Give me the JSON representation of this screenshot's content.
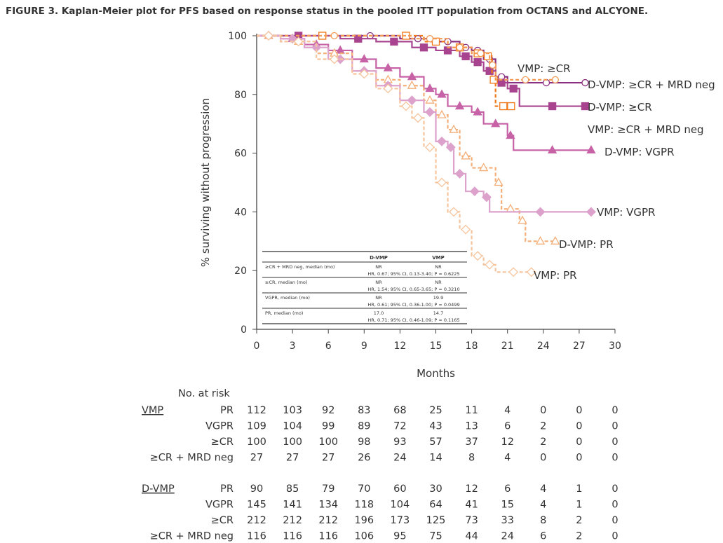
{
  "chart_data": {
    "type": "line",
    "title": "FIGURE 3. Kaplan-Meier plot for PFS based on response status in the pooled ITT population from OCTANS and ALCYONE.",
    "xlabel": "Months",
    "ylabel": "% surviving without progression",
    "xlim": [
      0,
      30
    ],
    "ylim": [
      0,
      100
    ],
    "xticks": [
      "0",
      "3",
      "6",
      "9",
      "12",
      "15",
      "18",
      "21",
      "24",
      "27",
      "30"
    ],
    "yticks": [
      "0",
      "20",
      "40",
      "60",
      "80",
      "100"
    ],
    "grid": false,
    "series": [
      {
        "name": "D-VMP: ≥CR + MRD neg",
        "color": "#8a2f80",
        "dash": false,
        "marker": "circle-open",
        "points": [
          [
            0,
            100
          ],
          [
            7,
            100
          ],
          [
            12,
            99
          ],
          [
            15,
            98
          ],
          [
            17,
            96
          ],
          [
            18,
            95
          ],
          [
            19,
            92
          ],
          [
            20,
            86
          ],
          [
            21,
            84
          ],
          [
            27.5,
            84
          ]
        ]
      },
      {
        "name": "D-VMP: ≥CR",
        "color": "#a8448f",
        "dash": false,
        "marker": "square",
        "points": [
          [
            0,
            100
          ],
          [
            7,
            99
          ],
          [
            10,
            98
          ],
          [
            13,
            96
          ],
          [
            15,
            95
          ],
          [
            17,
            93
          ],
          [
            18,
            91
          ],
          [
            19,
            88
          ],
          [
            20,
            84
          ],
          [
            21,
            82
          ],
          [
            22,
            76
          ],
          [
            27.5,
            76
          ]
        ]
      },
      {
        "name": "VMP: ≥CR",
        "color": "#f07818",
        "dash": true,
        "marker": "square-open",
        "points": [
          [
            0,
            100
          ],
          [
            11,
            100
          ],
          [
            14,
            98
          ],
          [
            16,
            96
          ],
          [
            18,
            94
          ],
          [
            19,
            93
          ],
          [
            19.7,
            85
          ],
          [
            20,
            76
          ],
          [
            21.3,
            76
          ]
        ]
      },
      {
        "name": "VMP: ≥CR + MRD neg",
        "color": "#f39a55",
        "dash": true,
        "marker": "circle-open",
        "points": [
          [
            0,
            100
          ],
          [
            13,
            99
          ],
          [
            16,
            96
          ],
          [
            18,
            94
          ],
          [
            19.5,
            90
          ],
          [
            20,
            85
          ],
          [
            25,
            85
          ]
        ]
      },
      {
        "name": "D-VMP: VGPR",
        "color": "#c862a6",
        "dash": false,
        "marker": "triangle",
        "points": [
          [
            0,
            100
          ],
          [
            2,
            99
          ],
          [
            4,
            97
          ],
          [
            6,
            95
          ],
          [
            8,
            92
          ],
          [
            10,
            89
          ],
          [
            12,
            86
          ],
          [
            14,
            82
          ],
          [
            15,
            80
          ],
          [
            16,
            76
          ],
          [
            18,
            74
          ],
          [
            19,
            70
          ],
          [
            21,
            66
          ],
          [
            21.5,
            61
          ],
          [
            28,
            61
          ]
        ]
      },
      {
        "name": "VMP: VGPR",
        "color": "#f4ae78",
        "dash": true,
        "marker": "triangle-open",
        "points": [
          [
            0,
            100
          ],
          [
            2,
            98
          ],
          [
            5,
            94
          ],
          [
            8,
            88
          ],
          [
            10,
            85
          ],
          [
            12,
            83
          ],
          [
            14,
            78
          ],
          [
            15,
            73
          ],
          [
            16,
            68
          ],
          [
            17,
            59
          ],
          [
            18,
            55
          ],
          [
            20,
            50
          ],
          [
            20.5,
            41
          ],
          [
            22,
            37
          ],
          [
            22.5,
            30
          ],
          [
            25,
            30
          ]
        ]
      },
      {
        "name": "D-VMP: PR",
        "color": "#dca2cc",
        "dash": false,
        "marker": "diamond",
        "points": [
          [
            0,
            100
          ],
          [
            2,
            99
          ],
          [
            4,
            96
          ],
          [
            6,
            92
          ],
          [
            8,
            88
          ],
          [
            10,
            83
          ],
          [
            12,
            78
          ],
          [
            14,
            74
          ],
          [
            15,
            64
          ],
          [
            16,
            62
          ],
          [
            16.5,
            53
          ],
          [
            17.5,
            47
          ],
          [
            19,
            45
          ],
          [
            19.5,
            40
          ],
          [
            28,
            40
          ]
        ]
      },
      {
        "name": "VMP: PR",
        "color": "#f6c49c",
        "dash": true,
        "marker": "diamond-open",
        "points": [
          [
            0,
            100
          ],
          [
            2,
            98
          ],
          [
            5,
            92
          ],
          [
            8,
            87
          ],
          [
            10,
            82
          ],
          [
            12,
            76
          ],
          [
            13,
            72
          ],
          [
            14,
            62
          ],
          [
            15,
            50
          ],
          [
            16,
            40
          ],
          [
            17,
            34
          ],
          [
            18,
            25
          ],
          [
            19,
            22
          ],
          [
            20,
            19.5
          ],
          [
            23,
            19.5
          ]
        ]
      }
    ],
    "inset_table": {
      "headers": [
        "",
        "D-VMP",
        "VMP"
      ],
      "rows": [
        {
          "label": "≥CR + MRD neg, median (mo)",
          "dvmp": "NR",
          "vmp": "NR",
          "stats": "HR, 0.67; 95% CI, 0.13-3.40; P = 0.6225"
        },
        {
          "label": "≥CR, median (mo)",
          "dvmp": "NR",
          "vmp": "NR",
          "stats": "HR, 1.54; 95% CI, 0.65-3.65; P = 0.3210"
        },
        {
          "label": "VGPR, median (mo)",
          "dvmp": "NR",
          "vmp": "19.9",
          "stats": "HR, 0.61; 95% CI, 0.36-1.00; P = 0.0499"
        },
        {
          "label": "PR, median (mo)",
          "dvmp": "17.0",
          "vmp": "14.7",
          "stats": "HR, 0.71; 95% CI, 0.46-1.09; P = 0.1165"
        }
      ]
    },
    "risk_table": {
      "title": "No. at risk",
      "groups": [
        {
          "name": "VMP",
          "rows": [
            {
              "label": "PR",
              "values": [
                "112",
                "103",
                "92",
                "83",
                "68",
                "25",
                "11",
                "4",
                "0",
                "0",
                "0"
              ]
            },
            {
              "label": "VGPR",
              "values": [
                "109",
                "104",
                "99",
                "89",
                "72",
                "43",
                "13",
                "6",
                "2",
                "0",
                "0"
              ]
            },
            {
              "label": "≥CR",
              "values": [
                "100",
                "100",
                "100",
                "98",
                "93",
                "57",
                "37",
                "12",
                "2",
                "0",
                "0"
              ]
            },
            {
              "label": "≥CR + MRD neg",
              "values": [
                "27",
                "27",
                "27",
                "26",
                "24",
                "14",
                "8",
                "4",
                "0",
                "0",
                "0"
              ]
            }
          ]
        },
        {
          "name": "D-VMP",
          "rows": [
            {
              "label": "PR",
              "values": [
                "90",
                "85",
                "79",
                "70",
                "60",
                "30",
                "12",
                "6",
                "4",
                "1",
                "0"
              ]
            },
            {
              "label": "VGPR",
              "values": [
                "145",
                "141",
                "134",
                "118",
                "104",
                "64",
                "41",
                "15",
                "4",
                "1",
                "0"
              ]
            },
            {
              "label": "≥CR",
              "values": [
                "212",
                "212",
                "212",
                "196",
                "173",
                "125",
                "73",
                "33",
                "8",
                "2",
                "0"
              ]
            },
            {
              "label": "≥CR + MRD neg",
              "values": [
                "116",
                "116",
                "116",
                "106",
                "95",
                "75",
                "44",
                "24",
                "6",
                "2",
                "0"
              ]
            }
          ]
        }
      ]
    }
  }
}
